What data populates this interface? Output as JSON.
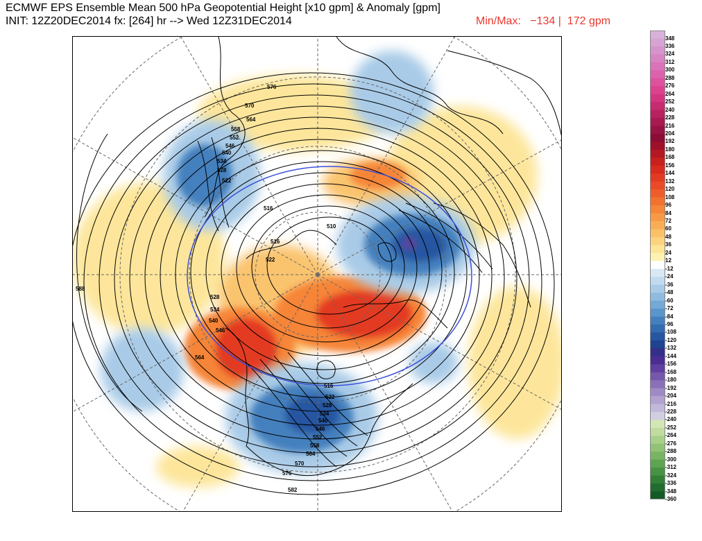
{
  "header": {
    "title_line1": "ECMWF EPS Ensemble Mean 500 hPa Geopotential Height [x10 gpm] & Anomaly [gpm]",
    "title_line2": "INIT: 12Z20DEC2014 fx: [264] hr --> Wed 12Z31DEC2014",
    "minmax_label": "Min/Max:",
    "min_value": "−134",
    "separator": "|",
    "max_value": "172 gpm"
  },
  "colors": {
    "background": "#ffffff",
    "minmax_text": "#e8382e",
    "contour_height": "#000000",
    "contour_546": "#3b4fd8",
    "graticule": "#666666"
  },
  "colorbar": {
    "entries": [
      {
        "label": "348",
        "color": "#d9b2d9"
      },
      {
        "label": "336",
        "color": "#d6a3d3"
      },
      {
        "label": "324",
        "color": "#d594cc"
      },
      {
        "label": "312",
        "color": "#d784c3"
      },
      {
        "label": "300",
        "color": "#da73b9"
      },
      {
        "label": "288",
        "color": "#dc62ad"
      },
      {
        "label": "276",
        "color": "#de519f"
      },
      {
        "label": "264",
        "color": "#dc4290"
      },
      {
        "label": "252",
        "color": "#d53580"
      },
      {
        "label": "240",
        "color": "#c72a6e"
      },
      {
        "label": "228",
        "color": "#b8225f"
      },
      {
        "label": "216",
        "color": "#a81a51"
      },
      {
        "label": "204",
        "color": "#981243"
      },
      {
        "label": "192",
        "color": "#8c0c36"
      },
      {
        "label": "180",
        "color": "#a0102a"
      },
      {
        "label": "168",
        "color": "#b41822"
      },
      {
        "label": "156",
        "color": "#c8201c"
      },
      {
        "label": "144",
        "color": "#d92a1e"
      },
      {
        "label": "132",
        "color": "#e33a22"
      },
      {
        "label": "120",
        "color": "#ea4a26"
      },
      {
        "label": "108",
        "color": "#ef5d2a"
      },
      {
        "label": "96",
        "color": "#f3712f"
      },
      {
        "label": "84",
        "color": "#f68538"
      },
      {
        "label": "72",
        "color": "#f89a45"
      },
      {
        "label": "60",
        "color": "#f9ae55"
      },
      {
        "label": "48",
        "color": "#fac168"
      },
      {
        "label": "36",
        "color": "#fcd37f"
      },
      {
        "label": "24",
        "color": "#fde596"
      },
      {
        "label": "12",
        "color": "#fef2b2"
      },
      {
        "label": "-12",
        "color": "#ffffff"
      },
      {
        "label": "-24",
        "color": "#d8e8f5"
      },
      {
        "label": "-36",
        "color": "#c2daef"
      },
      {
        "label": "-48",
        "color": "#a9cbe7"
      },
      {
        "label": "-60",
        "color": "#8fbbdf"
      },
      {
        "label": "-72",
        "color": "#74a9d6"
      },
      {
        "label": "-84",
        "color": "#5a95cb"
      },
      {
        "label": "-96",
        "color": "#4480be"
      },
      {
        "label": "-108",
        "color": "#336bb0"
      },
      {
        "label": "-120",
        "color": "#2756a1"
      },
      {
        "label": "-132",
        "color": "#1f4391"
      },
      {
        "label": "-144",
        "color": "#352f8a"
      },
      {
        "label": "-156",
        "color": "#4a2d93"
      },
      {
        "label": "-168",
        "color": "#5f3f9f"
      },
      {
        "label": "-180",
        "color": "#7557ab"
      },
      {
        "label": "-192",
        "color": "#8a70b8"
      },
      {
        "label": "-204",
        "color": "#9e8ac4"
      },
      {
        "label": "-216",
        "color": "#b1a2cf"
      },
      {
        "label": "-228",
        "color": "#c2b8d9"
      },
      {
        "label": "-240",
        "color": "#d1cee2"
      },
      {
        "label": "-252",
        "color": "#d3e6b5"
      },
      {
        "label": "-264",
        "color": "#c0dca0"
      },
      {
        "label": "-276",
        "color": "#a9d08a"
      },
      {
        "label": "-288",
        "color": "#91c275"
      },
      {
        "label": "-300",
        "color": "#78b463"
      },
      {
        "label": "-312",
        "color": "#5fa452"
      },
      {
        "label": "-324",
        "color": "#479244"
      },
      {
        "label": "-336",
        "color": "#327f38"
      },
      {
        "label": "-348",
        "color": "#216c2e"
      },
      {
        "label": "-360",
        "color": "#145a26"
      }
    ]
  },
  "map": {
    "projection": "polar stereographic (Northern Hemisphere)",
    "contour_labels": [
      "576",
      "570",
      "564",
      "558",
      "552",
      "546",
      "540",
      "534",
      "528",
      "522",
      "516",
      "510",
      "516",
      "522",
      "528",
      "534",
      "540",
      "546",
      "564",
      "516",
      "522",
      "528",
      "534",
      "540",
      "546",
      "552",
      "558",
      "564",
      "570",
      "576",
      "582",
      "588"
    ]
  }
}
